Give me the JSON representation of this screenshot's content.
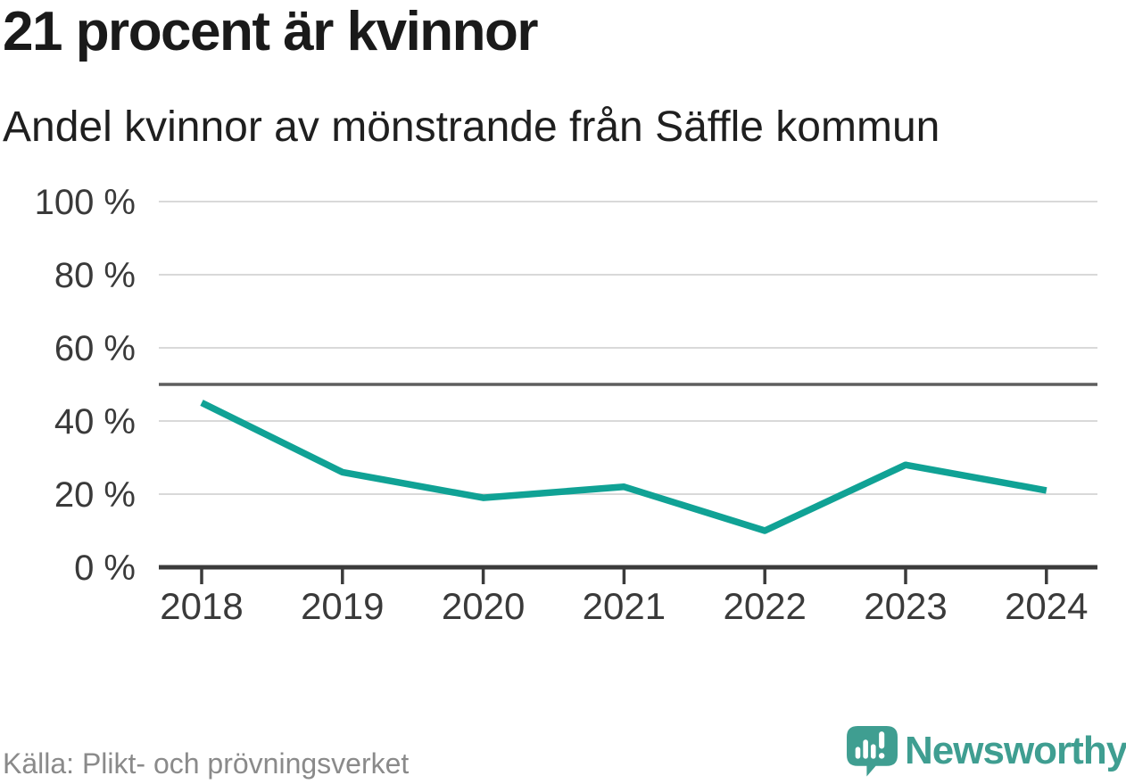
{
  "header": {
    "title": "21 procent är kvinnor",
    "subtitle": "Andel kvinnor av mönstrande från Säffle kommun"
  },
  "chart_data": {
    "type": "line",
    "title": "21 procent är kvinnor",
    "subtitle": "Andel kvinnor av mönstrande från Säffle kommun",
    "x": [
      "2018",
      "2019",
      "2020",
      "2021",
      "2022",
      "2023",
      "2024"
    ],
    "series": [
      {
        "name": "Andel kvinnor av mönstrande",
        "values": [
          45,
          26,
          19,
          22,
          10,
          28,
          21
        ]
      }
    ],
    "unit": "%",
    "ylim": [
      0,
      100
    ],
    "yticks": [
      0,
      20,
      40,
      60,
      80,
      100
    ],
    "ytick_format": "{v} %",
    "reference_line": 50,
    "grid": true,
    "legend": "none",
    "line_color": "#10a295"
  },
  "footer": {
    "source": "Källa: Plikt- och prövningsverket",
    "brand": "Newsworthy"
  },
  "icons": {
    "logo": "newsworthy-speech-bubble-barchart-icon"
  },
  "colors": {
    "accent_line": "#10a295",
    "logo_teal": "#3f9e91",
    "gridline": "#d9d9d9",
    "reference_line": "#5e5e5e",
    "axis": "#3b3b3b",
    "axis_text": "#3a3a3a",
    "title_text": "#1a1a1a",
    "subtitle_text": "#1f1f1f",
    "source_text": "#8a8a8a",
    "background": "#ffffff"
  }
}
